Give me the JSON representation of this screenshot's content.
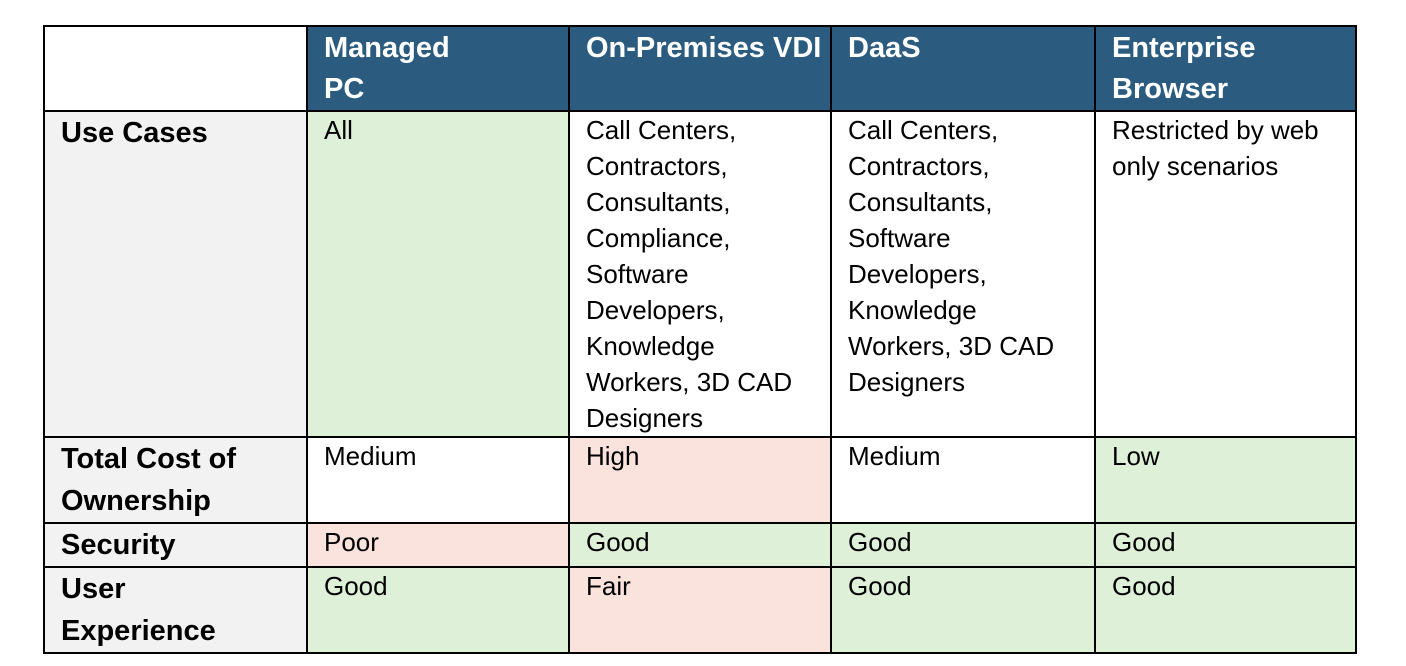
{
  "header": {
    "columns": [
      "Managed PC",
      "On-Premises VDI",
      "DaaS",
      "Enterprise Browser"
    ]
  },
  "rows": [
    {
      "label": "Use Cases",
      "cells": [
        {
          "text": "All",
          "rating": "good",
          "color": "#dff0d8"
        },
        {
          "text": "Call Centers, Contractors, Consultants, Compliance, Software Developers, Knowledge Workers, 3D CAD Designers",
          "rating": "neutral",
          "color": "#ffffff"
        },
        {
          "text": "Call Centers, Contractors, Consultants, Software Developers, Knowledge Workers, 3D CAD Designers",
          "rating": "neutral",
          "color": "#ffffff"
        },
        {
          "text": "Restricted by web only scenarios",
          "rating": "neutral",
          "color": "#ffffff"
        }
      ]
    },
    {
      "label": "Total Cost of Ownership",
      "cells": [
        {
          "text": "Medium",
          "rating": "neutral",
          "color": "#ffffff"
        },
        {
          "text": "High",
          "rating": "bad",
          "color": "#fae3dc"
        },
        {
          "text": "Medium",
          "rating": "neutral",
          "color": "#ffffff"
        },
        {
          "text": "Low",
          "rating": "good",
          "color": "#dff0d8"
        }
      ]
    },
    {
      "label": "Security",
      "cells": [
        {
          "text": "Poor",
          "rating": "bad",
          "color": "#fae3dc"
        },
        {
          "text": "Good",
          "rating": "good",
          "color": "#dff0d8"
        },
        {
          "text": "Good",
          "rating": "good",
          "color": "#dff0d8"
        },
        {
          "text": "Good",
          "rating": "good",
          "color": "#dff0d8"
        }
      ]
    },
    {
      "label": "User Experience",
      "cells": [
        {
          "text": "Good",
          "rating": "good",
          "color": "#dff0d8"
        },
        {
          "text": "Fair",
          "rating": "bad",
          "color": "#fae3dc"
        },
        {
          "text": "Good",
          "rating": "good",
          "color": "#dff0d8"
        },
        {
          "text": "Good",
          "rating": "good",
          "color": "#dff0d8"
        }
      ]
    }
  ],
  "colors": {
    "header_bg": "#2b5c80",
    "header_text": "#ffffff",
    "row_label_bg": "#f2f2f2",
    "good": "#dff0d8",
    "bad": "#fae3dc",
    "neutral": "#ffffff"
  }
}
